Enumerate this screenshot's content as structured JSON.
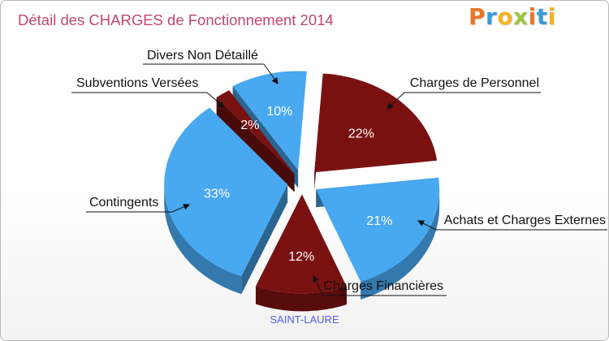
{
  "title": "Détail des CHARGES de Fonctionnement 2014",
  "logo": {
    "letters": [
      "P",
      "r",
      "o",
      "x",
      "i",
      "t",
      "i"
    ],
    "colors": [
      "#e8762b",
      "#3a9bd8",
      "#f4b221",
      "#9bc53d",
      "#e8762b",
      "#3a9bd8",
      "#f4b221"
    ]
  },
  "subtitle": "SAINT-LAURE",
  "colors": {
    "personnel": "#7a1111",
    "achats": "#48a8f0",
    "financieres": "#7a1111",
    "contingents": "#48a8f0",
    "subventions": "#7a1111",
    "divers": "#48a8f0"
  },
  "chart_data": {
    "type": "pie",
    "title": "Détail des CHARGES de Fonctionnement 2014",
    "categories": [
      "Charges de Personnel",
      "Achats et Charges Externes",
      "Charges Financières",
      "Contingents",
      "Subventions Versées",
      "Divers Non Détaillé"
    ],
    "values": [
      22,
      21,
      12,
      33,
      2,
      10
    ],
    "labels": [
      "22%",
      "21%",
      "12%",
      "33%",
      "2%",
      "10%"
    ]
  }
}
